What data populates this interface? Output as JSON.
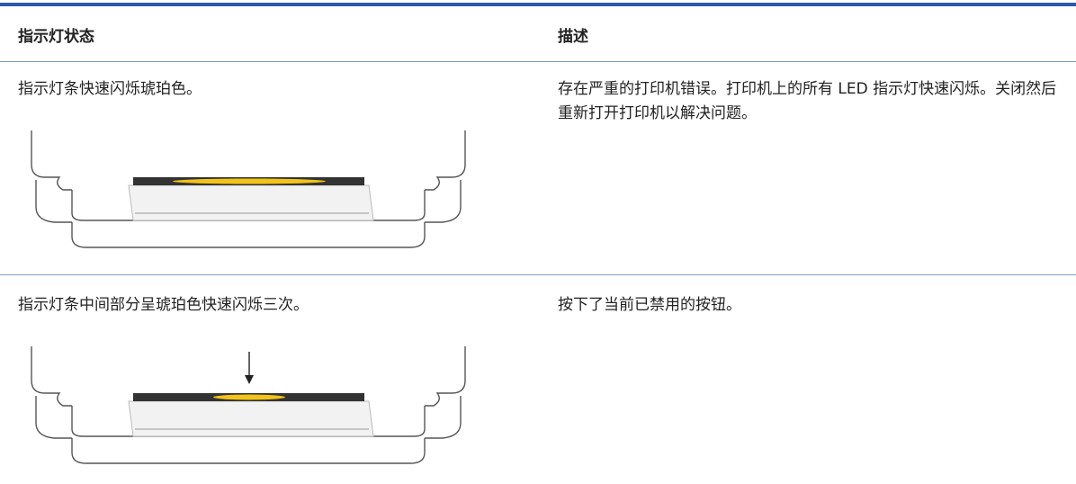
{
  "table": {
    "headers": [
      "指示灯状态",
      "描述"
    ],
    "rows": [
      [
        "指示灯条快速闪烁琥珀色。",
        "存在严重的打印机错误。打印机上的所有 LED 指示灯快速闪烁。关闭然后重新打开打印机以解决问题。"
      ],
      [
        "指示灯条中间部分呈琥珀色快速闪烁三次。",
        "按下了当前已禁用的按钮。"
      ]
    ]
  }
}
